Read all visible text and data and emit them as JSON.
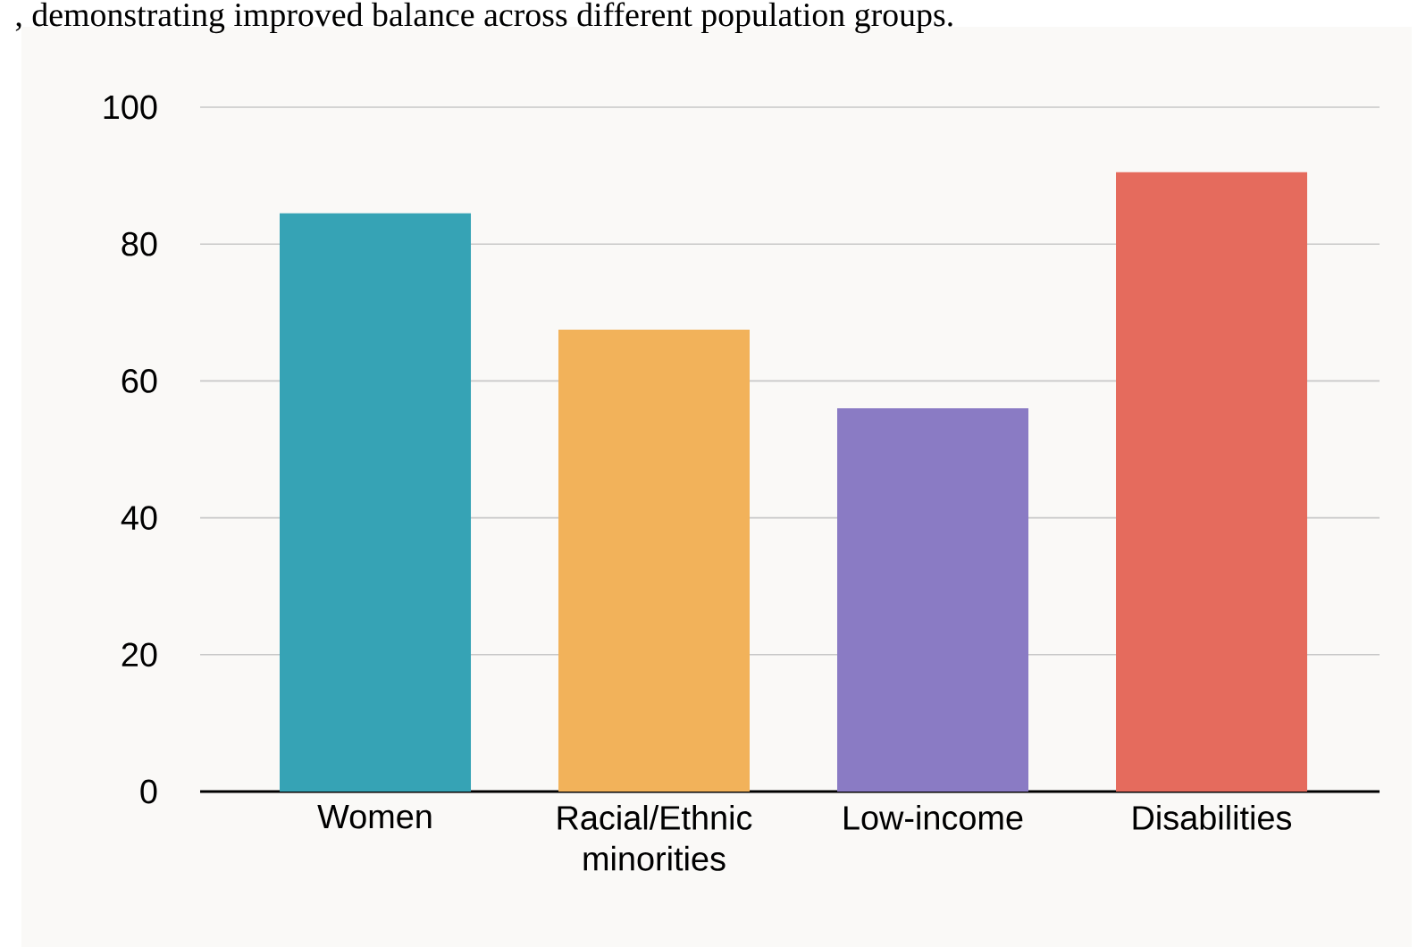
{
  "chart_data": {
    "type": "bar",
    "annotations": [
      ", demonstrating improved balance across different population groups."
    ],
    "categories": [
      "Women",
      "Racial/Ethnic minorities",
      "Low-income",
      "Disabilities"
    ],
    "values": [
      84.5,
      67.5,
      56,
      90.5
    ],
    "colors": [
      "#36a3b5",
      "#f2b25a",
      "#8a7bc4",
      "#e56b5d"
    ],
    "ylim": [
      0,
      100
    ],
    "yticks": [
      0,
      20,
      40,
      60,
      80,
      100
    ],
    "grid": "y"
  }
}
